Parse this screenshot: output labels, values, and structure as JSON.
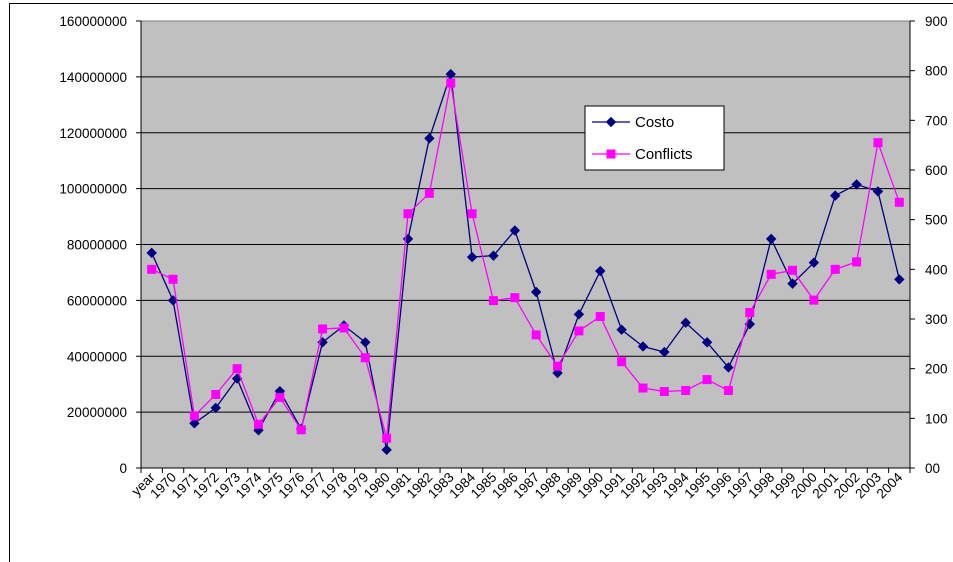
{
  "chart_data": {
    "type": "line",
    "title": "",
    "categories": [
      "year",
      "1970",
      "1971",
      "1972",
      "1973",
      "1974",
      "1975",
      "1976",
      "1977",
      "1978",
      "1979",
      "1980",
      "1981",
      "1982",
      "1983",
      "1984",
      "1985",
      "1986",
      "1987",
      "1988",
      "1989",
      "1990",
      "1991",
      "1992",
      "1993",
      "1994",
      "1995",
      "1996",
      "1997",
      "1998",
      "1999",
      "2000",
      "2001",
      "2002",
      "2003",
      "2004"
    ],
    "y_left": {
      "ylim": [
        0,
        160000000
      ],
      "ticks": [
        "0",
        "20000000",
        "40000000",
        "60000000",
        "80000000",
        "100000000",
        "120000000",
        "140000000",
        "160000000"
      ]
    },
    "y_right": {
      "ylim": [
        0,
        900
      ],
      "ticks": [
        "00",
        "100",
        "200",
        "300",
        "400",
        "500",
        "600",
        "700",
        "800",
        "900"
      ]
    },
    "series": [
      {
        "name": "Costo",
        "axis": "left",
        "color": "#000080",
        "marker": "diamond",
        "values": [
          77000000,
          60000000,
          16000000,
          21500000,
          32000000,
          13500000,
          27500000,
          14000000,
          45000000,
          51000000,
          45000000,
          6500000,
          82000000,
          118000000,
          141000000,
          75500000,
          76000000,
          85000000,
          63000000,
          34000000,
          55000000,
          70500000,
          49500000,
          43500000,
          41500000,
          52000000,
          45000000,
          36000000,
          51500000,
          82000000,
          66000000,
          73500000,
          97500000,
          101500000,
          99000000,
          67500000
        ]
      },
      {
        "name": "Conflicts",
        "axis": "right",
        "color": "#ff00ff",
        "marker": "square",
        "values": [
          400,
          380,
          105,
          148,
          200,
          88,
          142,
          77,
          280,
          282,
          222,
          60,
          512,
          553,
          775,
          512,
          337,
          343,
          268,
          205,
          276,
          305,
          214,
          161,
          154,
          156,
          178,
          156,
          313,
          390,
          398,
          338,
          400,
          415,
          655,
          535
        ]
      }
    ],
    "legend_position": "top-right inside plot",
    "plot_background": "#c0c0c0",
    "grid": {
      "horizontal": true,
      "vertical": false
    }
  }
}
